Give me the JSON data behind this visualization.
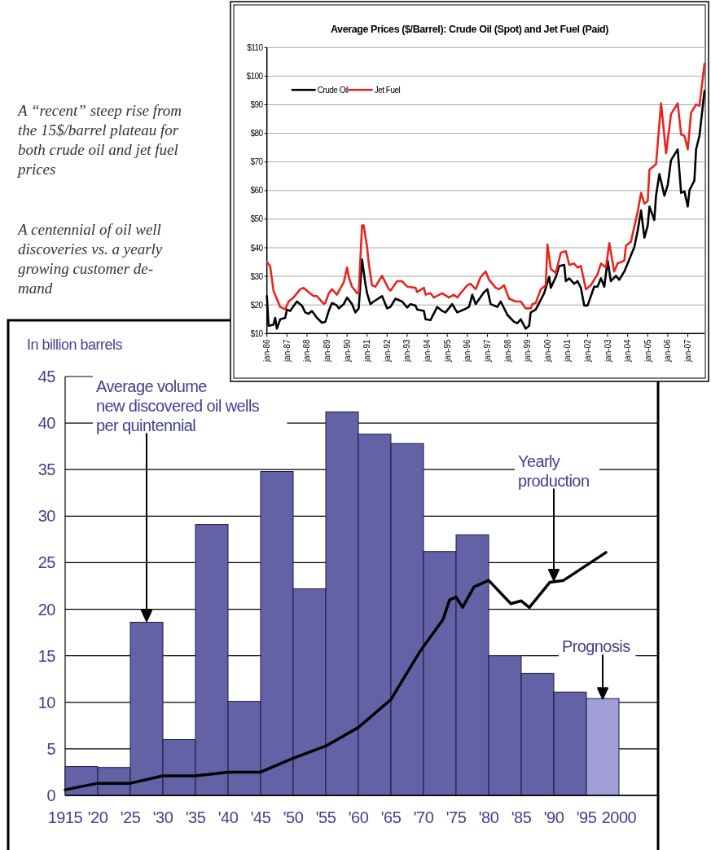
{
  "chart_data": [
    {
      "type": "line",
      "title": "Average Prices ($/Barrel): Crude Oil (Spot) and Jet Fuel (Paid)",
      "xlim": [
        "1986-01",
        "2007-11"
      ],
      "ylim": [
        10,
        110
      ],
      "xticks": [
        {
          "value": "1986-01",
          "label": "jan-86"
        },
        {
          "value": "1987-01",
          "label": "jan-87"
        },
        {
          "value": "1988-01",
          "label": "jan-88"
        },
        {
          "value": "1989-01",
          "label": "jan-89"
        },
        {
          "value": "1990-01",
          "label": "jan-90"
        },
        {
          "value": "1991-01",
          "label": "jan-91"
        },
        {
          "value": "1992-01",
          "label": "jan-92"
        },
        {
          "value": "1993-01",
          "label": "jan-93"
        },
        {
          "value": "1994-01",
          "label": "jan-94"
        },
        {
          "value": "1995-01",
          "label": "jan-95"
        },
        {
          "value": "1996-01",
          "label": "jan-96"
        },
        {
          "value": "1997-01",
          "label": "jan-97"
        },
        {
          "value": "1998-01",
          "label": "jan-98"
        },
        {
          "value": "1999-01",
          "label": "jan-99"
        },
        {
          "value": "2000-01",
          "label": "jan-00"
        },
        {
          "value": "2001-01",
          "label": "jan-01"
        },
        {
          "value": "2002-01",
          "label": "jan-02"
        },
        {
          "value": "2003-01",
          "label": "jan-03"
        },
        {
          "value": "2004-01",
          "label": "jan-04"
        },
        {
          "value": "2005-01",
          "label": "jan-05"
        },
        {
          "value": "2006-01",
          "label": "jan-06"
        },
        {
          "value": "2007-01",
          "label": "jan-07"
        }
      ],
      "yticks": [
        {
          "value": 10,
          "label": "$10"
        },
        {
          "value": 20,
          "label": "$20"
        },
        {
          "value": 30,
          "label": "$30"
        },
        {
          "value": 40,
          "label": "$40"
        },
        {
          "value": 50,
          "label": "$50"
        },
        {
          "value": 60,
          "label": "$60"
        },
        {
          "value": 70,
          "label": "$70"
        },
        {
          "value": 80,
          "label": "$80"
        },
        {
          "value": 90,
          "label": "$90"
        },
        {
          "value": 100,
          "label": "$100"
        },
        {
          "value": 110,
          "label": "$110"
        }
      ],
      "grid": "y",
      "legend": "top left",
      "marker": "none",
      "line_style": "solid",
      "series": [
        {
          "name": "Crude Oil",
          "color": "#000000",
          "x": [
            "1986-01",
            "1986-02",
            "1986-05",
            "1986-06",
            "1986-07",
            "1986-09",
            "1986-12",
            "1987-01",
            "1987-03",
            "1987-07",
            "1987-10",
            "1987-12",
            "1988-02",
            "1988-04",
            "1988-07",
            "1988-10",
            "1988-12",
            "1989-02",
            "1989-04",
            "1989-07",
            "1989-08",
            "1989-11",
            "1990-01",
            "1990-04",
            "1990-06",
            "1990-08",
            "1990-10",
            "1990-12",
            "1991-01",
            "1991-03",
            "1991-05",
            "1991-10",
            "1992-01",
            "1992-03",
            "1992-06",
            "1992-10",
            "1993-01",
            "1993-03",
            "1993-06",
            "1993-07",
            "1993-11",
            "1993-12",
            "1994-03",
            "1994-07",
            "1994-10",
            "1994-12",
            "1995-04",
            "1995-07",
            "1995-11",
            "1996-02",
            "1996-04",
            "1996-06",
            "1996-11",
            "1997-01",
            "1997-03",
            "1997-07",
            "1997-09",
            "1998-01",
            "1998-05",
            "1998-07",
            "1998-09",
            "1998-12",
            "1999-02",
            "1999-03",
            "1999-06",
            "1999-11",
            "2000-02",
            "2000-03",
            "2000-06",
            "2000-08",
            "2000-11",
            "2000-12",
            "2001-02",
            "2001-05",
            "2001-07",
            "2001-09",
            "2001-11",
            "2002-01",
            "2002-05",
            "2002-07",
            "2002-09",
            "2002-11",
            "2003-01",
            "2003-03",
            "2003-06",
            "2003-08",
            "2003-11",
            "2004-01",
            "2004-05",
            "2004-07",
            "2004-09",
            "2004-11",
            "2005-01",
            "2005-02",
            "2005-05",
            "2005-06",
            "2005-08",
            "2005-11",
            "2006-01",
            "2006-03",
            "2006-07",
            "2006-09",
            "2006-11",
            "2007-01",
            "2007-02",
            "2007-05",
            "2007-06",
            "2007-08",
            "2007-11"
          ],
          "values": [
            23.1,
            12.7,
            13.1,
            15.5,
            11.7,
            15,
            15.5,
            18.4,
            17.9,
            21.2,
            19.8,
            17.4,
            16.9,
            17.9,
            15.5,
            13.8,
            14.1,
            17.9,
            20.7,
            19.8,
            18.8,
            20.3,
            22.6,
            20.3,
            17.4,
            18.8,
            35.9,
            27.4,
            24.1,
            20.3,
            21.2,
            23.1,
            18.8,
            19.3,
            22.2,
            21.2,
            19.1,
            20.3,
            19.8,
            18.4,
            17.9,
            15,
            14.7,
            19.3,
            17.9,
            17.4,
            20.3,
            17.4,
            18.4,
            19.3,
            23.6,
            20.3,
            24.5,
            25.5,
            20.3,
            19.3,
            21.2,
            16.5,
            14.1,
            13.6,
            15,
            11.7,
            12.7,
            17.4,
            18.4,
            24.1,
            29.8,
            26,
            29.8,
            33.6,
            34,
            28.3,
            29.3,
            27.4,
            28.3,
            26,
            19.8,
            19.8,
            26.4,
            26.4,
            29.3,
            26.4,
            35.5,
            28.3,
            30.2,
            28.8,
            31.7,
            34.5,
            40.2,
            45.9,
            53,
            43.5,
            47.8,
            54.4,
            49.7,
            58.2,
            65.8,
            58.2,
            62,
            70.6,
            74.4,
            59.2,
            59.7,
            54.4,
            60.1,
            63.5,
            74.4,
            79.1,
            94.8
          ]
        },
        {
          "name": "Jet Fuel",
          "color": "#e8251f",
          "x": [
            "1986-01",
            "1986-03",
            "1986-05",
            "1986-09",
            "1986-12",
            "1987-02",
            "1987-05",
            "1987-09",
            "1987-11",
            "1988-02",
            "1988-05",
            "1988-07",
            "1988-11",
            "1988-12",
            "1989-02",
            "1989-04",
            "1989-07",
            "1989-11",
            "1990-01",
            "1990-02",
            "1990-04",
            "1990-07",
            "1990-08",
            "1990-10",
            "1990-11",
            "1991-01",
            "1991-02",
            "1991-04",
            "1991-06",
            "1991-10",
            "1992-02",
            "1992-03",
            "1992-07",
            "1992-10",
            "1993-01",
            "1993-06",
            "1993-07",
            "1993-11",
            "1993-12",
            "1994-03",
            "1994-05",
            "1994-10",
            "1995-02",
            "1995-05",
            "1995-07",
            "1995-09",
            "1996-01",
            "1996-03",
            "1996-06",
            "1996-09",
            "1996-12",
            "1997-02",
            "1997-06",
            "1997-08",
            "1997-11",
            "1998-02",
            "1998-06",
            "1998-09",
            "1998-12",
            "1999-03",
            "1999-04",
            "1999-06",
            "1999-09",
            "1999-12",
            "2000-01",
            "2000-03",
            "2000-06",
            "2000-09",
            "2000-12",
            "2001-02",
            "2001-05",
            "2001-07",
            "2001-09",
            "2001-12",
            "2002-03",
            "2002-07",
            "2002-09",
            "2002-12",
            "2003-02",
            "2003-05",
            "2003-07",
            "2003-11",
            "2003-12",
            "2004-03",
            "2004-07",
            "2004-09",
            "2004-11",
            "2005-01",
            "2005-02",
            "2005-06",
            "2005-09",
            "2005-12",
            "2006-01",
            "2006-03",
            "2006-07",
            "2006-09",
            "2006-11",
            "2007-01",
            "2007-03",
            "2007-06",
            "2007-08",
            "2007-11"
          ],
          "values": [
            35,
            33.6,
            25,
            19.3,
            18.5,
            21.2,
            22.6,
            25.5,
            26,
            24.5,
            23.1,
            23.1,
            20.4,
            20.7,
            24.1,
            25.5,
            23.6,
            27.9,
            33.1,
            29.8,
            26.4,
            24.1,
            24.1,
            47.8,
            47.8,
            40.2,
            34.5,
            26.9,
            26.4,
            30.2,
            25.5,
            25,
            28.3,
            28.3,
            26.4,
            26,
            24.5,
            26,
            23.6,
            24.1,
            22.6,
            24.1,
            22.6,
            23.6,
            22.6,
            24.1,
            26.9,
            27.4,
            25.5,
            29.8,
            31.7,
            28.8,
            26,
            25.5,
            26.9,
            22.2,
            21.2,
            21.2,
            18.8,
            18.8,
            20.3,
            20.7,
            25.5,
            26.9,
            41.1,
            32.6,
            31.2,
            38.3,
            38.8,
            34,
            34.5,
            33.1,
            33.6,
            25.5,
            26.9,
            30.7,
            34.5,
            33.1,
            41.6,
            31.7,
            34.5,
            35.5,
            40.7,
            42.1,
            52.5,
            59.2,
            55.4,
            56.3,
            67.3,
            69.2,
            90.5,
            73,
            77.7,
            86.7,
            90.5,
            79.6,
            79.1,
            74.4,
            87.2,
            90.1,
            89.6,
            104.3
          ]
        }
      ]
    },
    {
      "type": "other",
      "annotations": [
        "A “recent” steep rise from\nthe 15$/barrel plateau for\nboth crude oil and jet fuel\nprices",
        "A centennial of oil well\ndiscoveries vs. a yearly\ngrowing customer de-\nmand"
      ]
    },
    {
      "type": "histogram",
      "ylabel": "In billion barrels",
      "bins": [
        1915,
        1920,
        1925,
        1930,
        1935,
        1940,
        1945,
        1950,
        1955,
        1960,
        1965,
        1970,
        1975,
        1980,
        1985,
        1990,
        1995,
        2000
      ],
      "values": [
        3.1,
        3.0,
        18.6,
        6.0,
        29.1,
        10.1,
        34.8,
        22.2,
        41.2,
        38.8,
        37.8,
        26.2,
        28.0,
        15.0,
        13.1,
        11.1,
        10.4
      ],
      "colors": [
        "#6462a6",
        "#6462a6",
        "#6462a6",
        "#6462a6",
        "#6462a6",
        "#6462a6",
        "#6462a6",
        "#6462a6",
        "#6462a6",
        "#6462a6",
        "#6462a6",
        "#6462a6",
        "#6462a6",
        "#6462a6",
        "#6462a6",
        "#6462a6",
        "#a09fd8"
      ],
      "xlim": [
        1915,
        2006
      ],
      "ylim": [
        0,
        45
      ],
      "xticks": [
        {
          "value": 1915,
          "label": "1915"
        },
        {
          "value": 1920,
          "label": "'20"
        },
        {
          "value": 1925,
          "label": "'25"
        },
        {
          "value": 1930,
          "label": "'30"
        },
        {
          "value": 1935,
          "label": "'35"
        },
        {
          "value": 1940,
          "label": "'40"
        },
        {
          "value": 1945,
          "label": "'45"
        },
        {
          "value": 1950,
          "label": "'50"
        },
        {
          "value": 1955,
          "label": "'55"
        },
        {
          "value": 1960,
          "label": "'60"
        },
        {
          "value": 1965,
          "label": "'65"
        },
        {
          "value": 1970,
          "label": "'70"
        },
        {
          "value": 1975,
          "label": "'75"
        },
        {
          "value": 1980,
          "label": "'80"
        },
        {
          "value": 1985,
          "label": "'85"
        },
        {
          "value": 1990,
          "label": "'90"
        },
        {
          "value": 1995,
          "label": "'95"
        },
        {
          "value": 2000,
          "label": "2000"
        }
      ],
      "yticks": [
        0,
        5,
        10,
        15,
        20,
        25,
        30,
        35,
        40,
        45
      ],
      "grid": "y",
      "annotations": [
        "Average volume\nnew discovered oil wells\nper quintennial",
        "Yearly\nproduction",
        {
          "text": "Prognosis",
          "x": 1997.5,
          "y": 10.4
        }
      ],
      "series": [
        {
          "type": "line",
          "color": "#000000",
          "x": [
            1915,
            1920,
            1925,
            1930,
            1935,
            1940,
            1945,
            1950,
            1955,
            1960,
            1965,
            1969.4,
            1973,
            1974,
            1975,
            1976,
            1977.75,
            1980,
            1983.4,
            1985,
            1986.25,
            1989.4,
            1991.5,
            1998
          ],
          "values": [
            0.6,
            1.3,
            1.3,
            2.1,
            2.1,
            2.5,
            2.5,
            4,
            5.3,
            7.3,
            10.3,
            15.4,
            18.9,
            21,
            21.3,
            20.2,
            22.4,
            23.1,
            20.6,
            20.9,
            20.2,
            22.9,
            23.1,
            26.1
          ]
        }
      ]
    }
  ]
}
